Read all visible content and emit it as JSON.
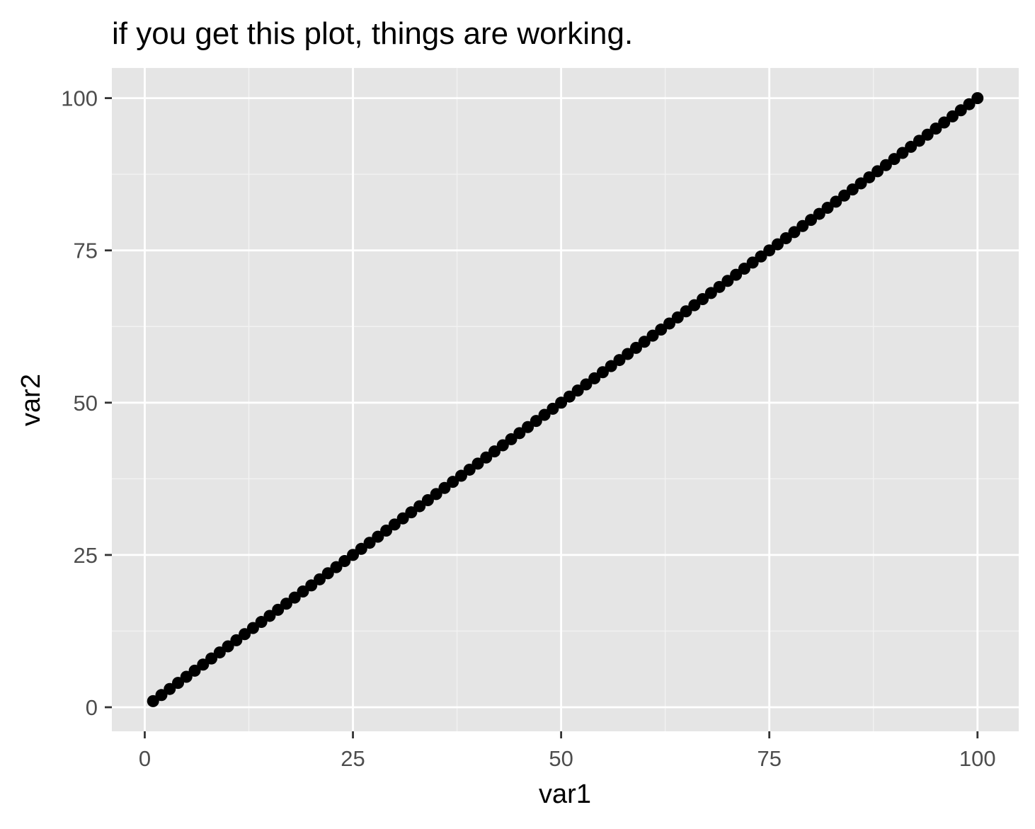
{
  "chart_data": {
    "type": "scatter",
    "title": "if you get this plot, things are working.",
    "xlabel": "var1",
    "ylabel": "var2",
    "xlim": [
      -3.95,
      104.95
    ],
    "ylim": [
      -3.95,
      104.95
    ],
    "x_ticks": [
      0,
      25,
      50,
      75,
      100
    ],
    "y_ticks": [
      0,
      25,
      50,
      75,
      100
    ],
    "x_tick_labels": [
      "0",
      "25",
      "50",
      "75",
      "100"
    ],
    "y_tick_labels": [
      "0",
      "25",
      "50",
      "75",
      "100"
    ],
    "x_minor_ticks": [
      12.5,
      37.5,
      62.5,
      87.5
    ],
    "y_minor_ticks": [
      12.5,
      37.5,
      62.5,
      87.5
    ],
    "grid": true,
    "point_range": {
      "start": 1,
      "end": 100,
      "step": 1,
      "relation": "var2 = var1"
    },
    "colors": {
      "panel_background": "#e5e5e5",
      "grid_major": "#ffffff",
      "grid_minor": "#f2f2f2",
      "points": "#000000",
      "tick_label": "#4d4d4d",
      "axis_ticks": "#333333",
      "title": "#000000"
    }
  }
}
